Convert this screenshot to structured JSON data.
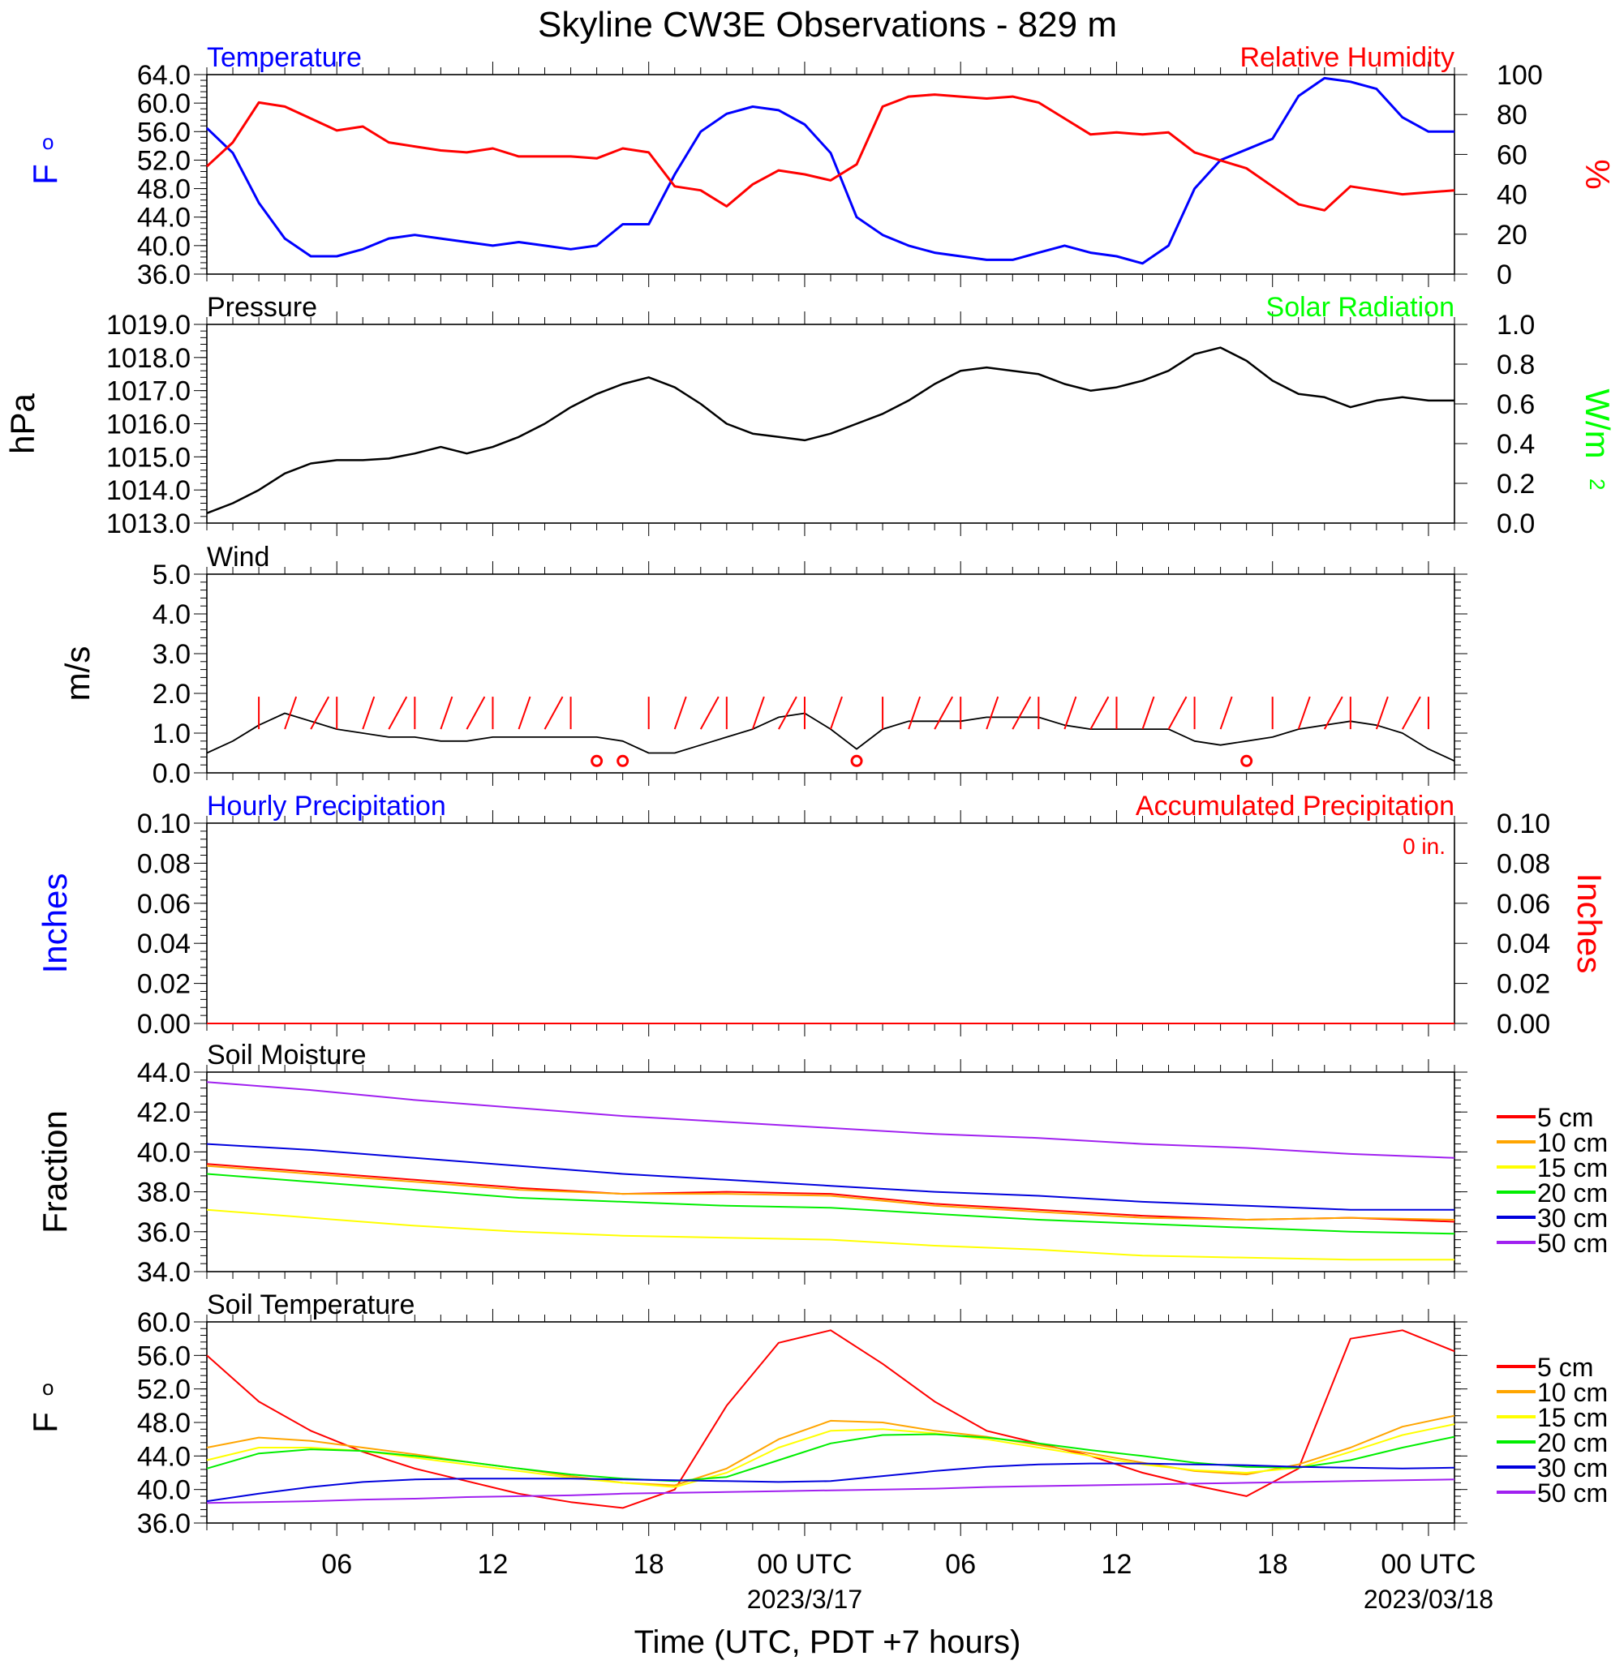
{
  "title": "Skyline CW3E Observations - 829 m",
  "xlabel": "Time (UTC, PDT +7 hours)",
  "x_ticks": [
    {
      "hour": 5,
      "label": "06",
      "sub": ""
    },
    {
      "hour": 11,
      "label": "12",
      "sub": ""
    },
    {
      "hour": 17,
      "label": "18",
      "sub": ""
    },
    {
      "hour": 23,
      "label": "00 UTC",
      "sub": "2023/3/17"
    },
    {
      "hour": 29,
      "label": "06",
      "sub": ""
    },
    {
      "hour": 35,
      "label": "12",
      "sub": ""
    },
    {
      "hour": 41,
      "label": "18",
      "sub": ""
    },
    {
      "hour": 47,
      "label": "00 UTC",
      "sub": "2023/03/18"
    }
  ],
  "colors": {
    "temperature": "#0000ff",
    "humidity": "#ff0000",
    "pressure": "#000000",
    "solar": "#00ff00",
    "wind": "#000000",
    "barb": "#ff0000",
    "soil": {
      "5 cm": "#ff0000",
      "10 cm": "#ffa500",
      "15 cm": "#ffff00",
      "20 cm": "#00ee00",
      "30 cm": "#0000dd",
      "50 cm": "#a020f0"
    }
  },
  "panels": {
    "temp_rh": {
      "left_title": "Temperature",
      "right_title": "Relative Humidity",
      "left_unit": "oF",
      "right_unit": "%",
      "left_ticks": [
        "36.0",
        "40.0",
        "44.0",
        "48.0",
        "52.0",
        "56.0",
        "60.0",
        "64.0"
      ],
      "right_ticks": [
        "0",
        "20",
        "40",
        "60",
        "80",
        "100"
      ]
    },
    "pressure": {
      "left_title": "Pressure",
      "right_title": "Solar Radiation",
      "left_unit": "hPa",
      "right_unit": "W/m2",
      "left_ticks": [
        "1013.0",
        "1014.0",
        "1015.0",
        "1016.0",
        "1017.0",
        "1018.0",
        "1019.0"
      ],
      "right_ticks": [
        "0.0",
        "0.2",
        "0.4",
        "0.6",
        "0.8",
        "1.0"
      ]
    },
    "wind": {
      "left_title": "Wind",
      "left_unit": "m/s",
      "left_ticks": [
        "0.0",
        "1.0",
        "2.0",
        "3.0",
        "4.0",
        "5.0"
      ]
    },
    "precip": {
      "left_title": "Hourly Precipitation",
      "right_title": "Accumulated Precipitation",
      "annotation": "0 in.",
      "left_unit": "Inches",
      "right_unit": "Inches",
      "left_ticks": [
        "0.00",
        "0.02",
        "0.04",
        "0.06",
        "0.08",
        "0.10"
      ],
      "right_ticks": [
        "0.00",
        "0.02",
        "0.04",
        "0.06",
        "0.08",
        "0.10"
      ]
    },
    "soil_moisture": {
      "left_title": "Soil Moisture",
      "left_unit": "Fraction",
      "left_ticks": [
        "34.0",
        "36.0",
        "38.0",
        "40.0",
        "42.0",
        "44.0"
      ],
      "legend": [
        "5 cm",
        "10 cm",
        "15 cm",
        "20 cm",
        "30 cm",
        "50 cm"
      ]
    },
    "soil_temp": {
      "left_title": "Soil Temperature",
      "left_unit": "oF",
      "left_ticks": [
        "36.0",
        "40.0",
        "44.0",
        "48.0",
        "52.0",
        "56.0",
        "60.0"
      ],
      "legend": [
        "5 cm",
        "10 cm",
        "15 cm",
        "20 cm",
        "30 cm",
        "50 cm"
      ]
    }
  },
  "chart_data": [
    {
      "type": "line",
      "name": "Temperature / Relative Humidity",
      "x_unit": "hours since 2023-03-16 01 UTC",
      "x": [
        0,
        1,
        2,
        3,
        4,
        5,
        6,
        7,
        8,
        9,
        10,
        11,
        12,
        13,
        14,
        15,
        16,
        17,
        18,
        19,
        20,
        21,
        22,
        23,
        24,
        25,
        26,
        27,
        28,
        29,
        30,
        31,
        32,
        33,
        34,
        35,
        36,
        37,
        38,
        39,
        40,
        41,
        42,
        43,
        44,
        45,
        46,
        47,
        48
      ],
      "ylim": [
        36,
        64
      ],
      "y2lim": [
        0,
        100
      ],
      "series": [
        {
          "name": "Temperature",
          "axis": "left",
          "values": [
            56.5,
            53,
            46,
            41,
            38.5,
            38.5,
            39.5,
            41,
            41.5,
            41,
            40.5,
            40,
            40.5,
            40,
            39.5,
            40,
            43,
            43,
            50,
            56,
            58.5,
            59.5,
            59,
            57,
            53,
            44,
            41.5,
            40,
            39,
            38.5,
            38,
            38,
            39,
            40,
            39,
            38.5,
            37.5,
            40,
            48,
            52,
            53.5,
            55,
            61,
            63.5,
            63,
            62,
            58,
            56,
            56
          ]
        },
        {
          "name": "Relative Humidity",
          "axis": "right",
          "values": [
            54,
            66,
            86,
            84,
            78,
            72,
            74,
            66,
            64,
            62,
            61,
            63,
            59,
            59,
            59,
            58,
            63,
            61,
            44,
            42,
            34,
            45,
            52,
            50,
            47,
            55,
            84,
            89,
            90,
            89,
            88,
            89,
            86,
            78,
            70,
            71,
            70,
            71,
            61,
            57,
            53,
            44,
            35,
            32,
            44,
            42,
            40,
            41,
            42
          ]
        }
      ]
    },
    {
      "type": "line",
      "name": "Pressure",
      "ylabel": "hPa",
      "ylim": [
        1013,
        1019
      ],
      "x": [
        0,
        1,
        2,
        3,
        4,
        5,
        6,
        7,
        8,
        9,
        10,
        11,
        12,
        13,
        14,
        15,
        16,
        17,
        18,
        19,
        20,
        21,
        22,
        23,
        24,
        25,
        26,
        27,
        28,
        29,
        30,
        31,
        32,
        33,
        34,
        35,
        36,
        37,
        38,
        39,
        40,
        41,
        42,
        43,
        44,
        45,
        46,
        47,
        48
      ],
      "series": [
        {
          "name": "Pressure",
          "values": [
            1013.3,
            1013.6,
            1014,
            1014.5,
            1014.8,
            1014.9,
            1014.9,
            1014.95,
            1015.1,
            1015.3,
            1015.1,
            1015.3,
            1015.6,
            1016,
            1016.5,
            1016.9,
            1017.2,
            1017.4,
            1017.1,
            1016.6,
            1016,
            1015.7,
            1015.6,
            1015.5,
            1015.7,
            1016,
            1016.3,
            1016.7,
            1017.2,
            1017.6,
            1017.7,
            1017.6,
            1017.5,
            1017.2,
            1017,
            1017.1,
            1017.3,
            1017.6,
            1018.1,
            1018.3,
            1017.9,
            1017.3,
            1016.9,
            1016.8,
            1016.5,
            1016.7,
            1016.8,
            1016.7,
            1016.7
          ]
        }
      ]
    },
    {
      "type": "line",
      "name": "Wind",
      "ylabel": "m/s",
      "ylim": [
        0,
        5
      ],
      "x": [
        0,
        1,
        2,
        3,
        4,
        5,
        6,
        7,
        8,
        9,
        10,
        11,
        12,
        13,
        14,
        15,
        16,
        17,
        18,
        19,
        20,
        21,
        22,
        23,
        24,
        25,
        26,
        27,
        28,
        29,
        30,
        31,
        32,
        33,
        34,
        35,
        36,
        37,
        38,
        39,
        40,
        41,
        42,
        43,
        44,
        45,
        46,
        47,
        48
      ],
      "series": [
        {
          "name": "Wind speed",
          "values": [
            0.5,
            0.8,
            1.2,
            1.5,
            1.3,
            1.1,
            1,
            0.9,
            0.9,
            0.8,
            0.8,
            0.9,
            0.9,
            0.9,
            0.9,
            0.9,
            0.8,
            0.5,
            0.5,
            0.7,
            0.9,
            1.1,
            1.4,
            1.5,
            1.1,
            0.6,
            1.1,
            1.3,
            1.3,
            1.3,
            1.4,
            1.4,
            1.4,
            1.2,
            1.1,
            1.1,
            1.1,
            1.1,
            0.8,
            0.7,
            0.8,
            0.9,
            1.1,
            1.2,
            1.3,
            1.2,
            1.0,
            0.6,
            0.3
          ]
        }
      ]
    },
    {
      "type": "line",
      "name": "Precipitation",
      "ylabel": "Inches",
      "ylim": [
        0,
        0.1
      ],
      "x": [
        0,
        48
      ],
      "series": [
        {
          "name": "Hourly Precipitation",
          "values": [
            0,
            0
          ]
        },
        {
          "name": "Accumulated Precipitation",
          "values": [
            0,
            0
          ]
        }
      ]
    },
    {
      "type": "line",
      "name": "Soil Moisture",
      "ylabel": "Fraction",
      "ylim": [
        34,
        44
      ],
      "x": [
        0,
        4,
        8,
        12,
        16,
        20,
        24,
        28,
        32,
        36,
        40,
        44,
        48
      ],
      "series": [
        {
          "name": "5 cm",
          "values": [
            39.4,
            39,
            38.6,
            38.2,
            37.9,
            38,
            37.9,
            37.4,
            37.1,
            36.8,
            36.6,
            36.7,
            36.5
          ]
        },
        {
          "name": "10 cm",
          "values": [
            39.3,
            38.9,
            38.5,
            38.1,
            37.9,
            37.9,
            37.8,
            37.3,
            37,
            36.7,
            36.6,
            36.7,
            36.6
          ]
        },
        {
          "name": "15 cm",
          "values": [
            37.1,
            36.7,
            36.3,
            36,
            35.8,
            35.7,
            35.6,
            35.3,
            35.1,
            34.8,
            34.7,
            34.6,
            34.6
          ]
        },
        {
          "name": "20 cm",
          "values": [
            38.9,
            38.5,
            38.1,
            37.7,
            37.5,
            37.3,
            37.2,
            36.9,
            36.6,
            36.4,
            36.2,
            36,
            35.9
          ]
        },
        {
          "name": "30 cm",
          "values": [
            40.4,
            40.1,
            39.7,
            39.3,
            38.9,
            38.6,
            38.3,
            38,
            37.8,
            37.5,
            37.3,
            37.1,
            37.1
          ]
        },
        {
          "name": "50 cm",
          "values": [
            43.5,
            43.1,
            42.6,
            42.2,
            41.8,
            41.5,
            41.2,
            40.9,
            40.7,
            40.4,
            40.2,
            39.9,
            39.7
          ]
        }
      ]
    },
    {
      "type": "line",
      "name": "Soil Temperature",
      "ylabel": "oF",
      "ylim": [
        36,
        60
      ],
      "x": [
        0,
        2,
        4,
        6,
        8,
        10,
        12,
        14,
        16,
        18,
        20,
        22,
        24,
        26,
        28,
        30,
        32,
        34,
        36,
        38,
        40,
        42,
        44,
        46,
        48
      ],
      "series": [
        {
          "name": "5 cm",
          "values": [
            56,
            50.5,
            47,
            44.5,
            42.5,
            41,
            39.5,
            38.5,
            37.8,
            40,
            50,
            57.5,
            59,
            55,
            50.5,
            47,
            45.5,
            44,
            42,
            40.5,
            39.2,
            42.5,
            58,
            59,
            56.5
          ]
        },
        {
          "name": "10 cm",
          "values": [
            45,
            46.2,
            45.8,
            45,
            44.2,
            43.3,
            42.5,
            41.6,
            40.8,
            40.5,
            42.5,
            46,
            48.2,
            48,
            47,
            46.3,
            45.3,
            44.3,
            43.2,
            42.2,
            41.8,
            43,
            45,
            47.5,
            48.8
          ]
        },
        {
          "name": "15 cm",
          "values": [
            43.5,
            45,
            45,
            44.6,
            43.8,
            43,
            42.2,
            41.4,
            40.8,
            40.3,
            42,
            45,
            47,
            47.2,
            46.7,
            46,
            45,
            44,
            43,
            42.3,
            42,
            42.6,
            44.5,
            46.5,
            47.8
          ]
        },
        {
          "name": "20 cm",
          "values": [
            42.5,
            44.3,
            44.8,
            44.6,
            44,
            43.3,
            42.5,
            41.8,
            41.3,
            41,
            41.5,
            43.5,
            45.5,
            46.5,
            46.6,
            46.2,
            45.5,
            44.7,
            44,
            43.2,
            42.7,
            42.6,
            43.5,
            45,
            46.3
          ]
        },
        {
          "name": "30 cm",
          "values": [
            38.6,
            39.5,
            40.3,
            40.9,
            41.2,
            41.3,
            41.3,
            41.3,
            41.2,
            41.1,
            41,
            40.9,
            41,
            41.6,
            42.2,
            42.7,
            43,
            43.1,
            43.1,
            43,
            42.9,
            42.7,
            42.6,
            42.5,
            42.6
          ]
        },
        {
          "name": "50 cm",
          "values": [
            38.4,
            38.5,
            38.6,
            38.8,
            38.9,
            39.1,
            39.2,
            39.3,
            39.5,
            39.6,
            39.7,
            39.8,
            39.9,
            40,
            40.1,
            40.3,
            40.4,
            40.5,
            40.6,
            40.7,
            40.8,
            40.9,
            41,
            41.1,
            41.2
          ]
        }
      ]
    }
  ],
  "wind_barbs": {
    "times": [
      2,
      3,
      4,
      5,
      6,
      7,
      8,
      9,
      10,
      11,
      12,
      13,
      14,
      15,
      16,
      17,
      18,
      19,
      20,
      21,
      22,
      23,
      24,
      25,
      26,
      27,
      28,
      29,
      30,
      31,
      32,
      33,
      34,
      35,
      36,
      37,
      38,
      39,
      40,
      41,
      42,
      43,
      44,
      45,
      46,
      47
    ],
    "calm_times": [
      15,
      16,
      25,
      40
    ]
  }
}
